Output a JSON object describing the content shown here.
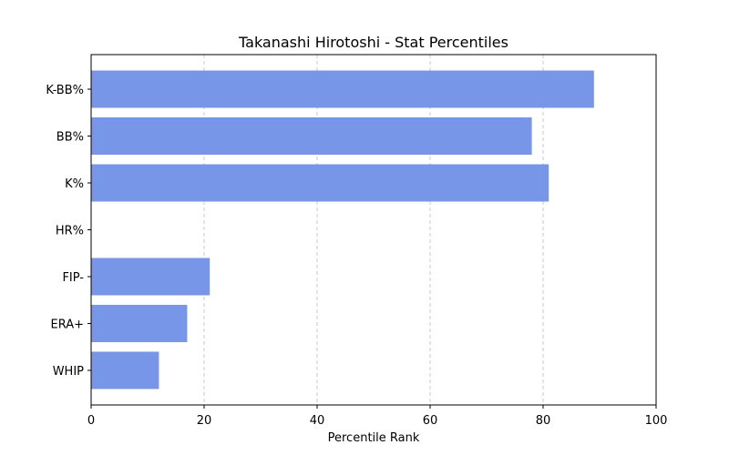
{
  "chart_data": {
    "type": "bar",
    "orientation": "horizontal",
    "title": "Takanashi Hirotoshi - Stat Percentiles",
    "xlabel": "Percentile Rank",
    "ylabel": "",
    "xlim": [
      0,
      100
    ],
    "xticks": [
      0,
      20,
      40,
      60,
      80,
      100
    ],
    "categories": [
      "K-BB%",
      "BB%",
      "K%",
      "HR%",
      "FIP-",
      "ERA+",
      "WHIP"
    ],
    "values": [
      89,
      78,
      81,
      0,
      21,
      17,
      12
    ],
    "bar_color": "#7896e8",
    "grid": "x-dashed"
  }
}
